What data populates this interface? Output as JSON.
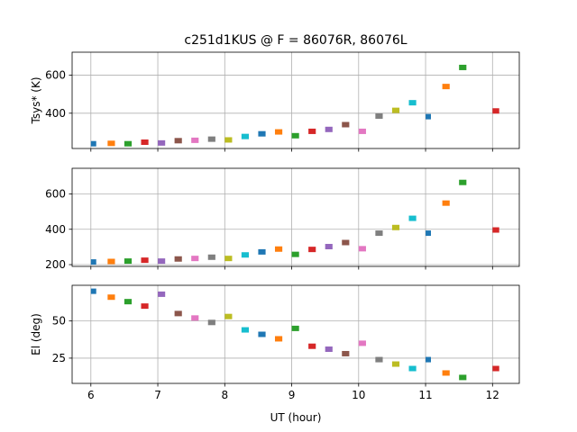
{
  "chart_data": {
    "type": "scatter",
    "title": "c251d1KUS @ F = 86076R, 86076L",
    "xlabel": "UT (hour)",
    "xlim": [
      5.72,
      12.4
    ],
    "xticks": [
      6,
      7,
      8,
      9,
      10,
      11,
      12
    ],
    "xtick_labels": [
      "6",
      "7",
      "8",
      "9",
      "10",
      "11",
      "12"
    ],
    "grid": true,
    "legend": "none",
    "colors": [
      "#1f77b4",
      "#ff7f0e",
      "#2ca02c",
      "#d62728",
      "#9467bd",
      "#8c564b",
      "#e377c2",
      "#7f7f7f",
      "#bcbd22",
      "#17becf"
    ],
    "scans": [
      {
        "t0": 6.0,
        "t1": 6.08,
        "tsys1": 240,
        "tsys2": 215,
        "el": 70
      },
      {
        "t0": 6.25,
        "t1": 6.36,
        "tsys1": 242,
        "tsys2": 218,
        "el": 66
      },
      {
        "t0": 6.5,
        "t1": 6.61,
        "tsys1": 240,
        "tsys2": 220,
        "el": 63
      },
      {
        "t0": 6.75,
        "t1": 6.86,
        "tsys1": 248,
        "tsys2": 225,
        "el": 60
      },
      {
        "t0": 7.0,
        "t1": 7.11,
        "tsys1": 244,
        "tsys2": 220,
        "el": 68
      },
      {
        "t0": 7.25,
        "t1": 7.36,
        "tsys1": 256,
        "tsys2": 232,
        "el": 55
      },
      {
        "t0": 7.5,
        "t1": 7.61,
        "tsys1": 258,
        "tsys2": 235,
        "el": 52
      },
      {
        "t0": 7.75,
        "t1": 7.86,
        "tsys1": 264,
        "tsys2": 242,
        "el": 49
      },
      {
        "t0": 8.0,
        "t1": 8.11,
        "tsys1": 260,
        "tsys2": 235,
        "el": 53
      },
      {
        "t0": 8.25,
        "t1": 8.36,
        "tsys1": 278,
        "tsys2": 255,
        "el": 44
      },
      {
        "t0": 8.5,
        "t1": 8.61,
        "tsys1": 292,
        "tsys2": 272,
        "el": 41
      },
      {
        "t0": 8.75,
        "t1": 8.86,
        "tsys1": 302,
        "tsys2": 288,
        "el": 38
      },
      {
        "t0": 9.0,
        "t1": 9.11,
        "tsys1": 282,
        "tsys2": 258,
        "el": 45
      },
      {
        "t0": 9.25,
        "t1": 9.36,
        "tsys1": 305,
        "tsys2": 286,
        "el": 33
      },
      {
        "t0": 9.5,
        "t1": 9.61,
        "tsys1": 315,
        "tsys2": 302,
        "el": 31
      },
      {
        "t0": 9.75,
        "t1": 9.86,
        "tsys1": 340,
        "tsys2": 325,
        "el": 28
      },
      {
        "t0": 10.0,
        "t1": 10.11,
        "tsys1": 305,
        "tsys2": 290,
        "el": 35
      },
      {
        "t0": 10.25,
        "t1": 10.36,
        "tsys1": 385,
        "tsys2": 378,
        "el": 24
      },
      {
        "t0": 10.5,
        "t1": 10.61,
        "tsys1": 415,
        "tsys2": 410,
        "el": 21
      },
      {
        "t0": 10.75,
        "t1": 10.86,
        "tsys1": 455,
        "tsys2": 462,
        "el": 18
      },
      {
        "t0": 11.0,
        "t1": 11.08,
        "tsys1": 382,
        "tsys2": 378,
        "el": 24
      },
      {
        "t0": 11.25,
        "t1": 11.36,
        "tsys1": 540,
        "tsys2": 548,
        "el": 15
      },
      {
        "t0": 11.5,
        "t1": 11.61,
        "tsys1": 640,
        "tsys2": 665,
        "el": 12
      },
      {
        "t0": 12.0,
        "t1": 12.1,
        "tsys1": 412,
        "tsys2": 396,
        "el": 18
      }
    ],
    "panels": [
      {
        "ylabel": "Tsys* (K)",
        "ylim": [
          215,
          720
        ],
        "yticks": [
          400,
          600
        ],
        "ytick_labels": [
          "400",
          "600"
        ],
        "field": "tsys1"
      },
      {
        "ylabel": "",
        "ylim": [
          190,
          745
        ],
        "yticks": [
          200,
          400,
          600
        ],
        "ytick_labels": [
          "200",
          "400",
          "600"
        ],
        "field": "tsys2"
      },
      {
        "ylabel": "El (deg)",
        "ylim": [
          8,
          74
        ],
        "yticks": [
          25,
          50
        ],
        "ytick_labels": [
          "25",
          "50"
        ],
        "field": "el"
      }
    ]
  }
}
